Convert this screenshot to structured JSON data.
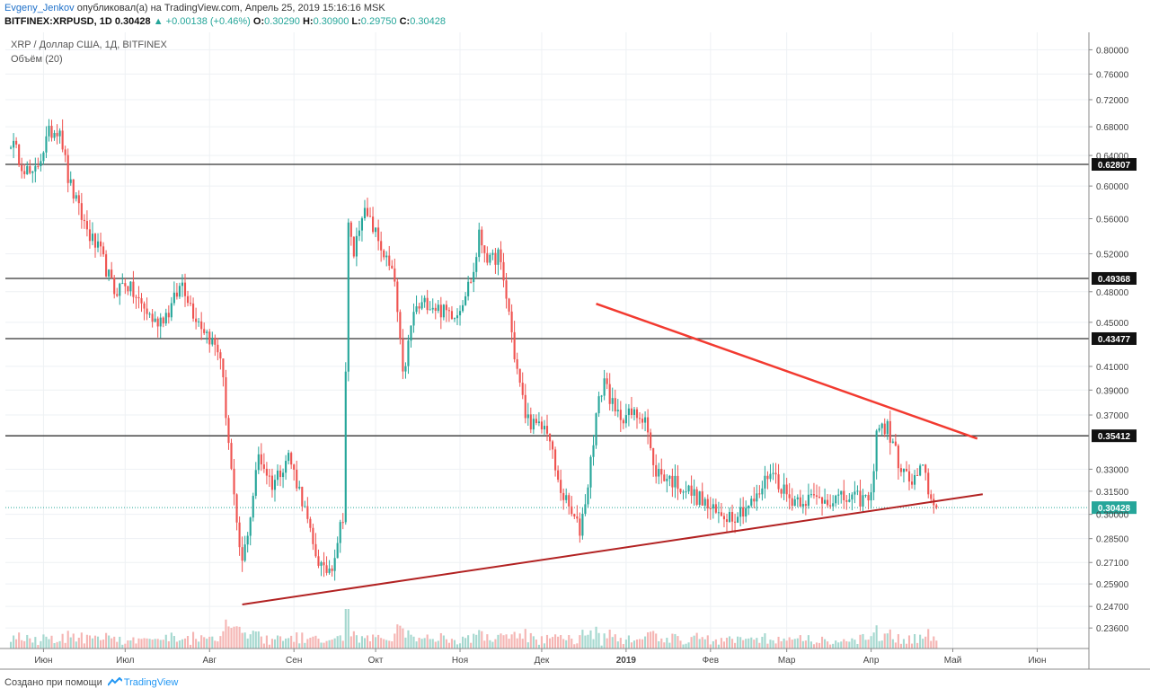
{
  "header": {
    "author": "Evgeny_Jenkov",
    "published_text": "опубликовал(а) на TradingView.com, Апрель 25, 2019 15:16:16 MSK",
    "symbol": "BITFINEX:XRPUSD, 1D",
    "last": "0.30428",
    "change": "+0.00138 (+0.46%)",
    "o_label": "O:",
    "o_value": "0.30290",
    "h_label": "H:",
    "h_value": "0.30900",
    "l_label": "L:",
    "l_value": "0.29750",
    "c_label": "C:",
    "c_value": "0.30428"
  },
  "footer": {
    "text": "Создано при помощи",
    "brand": "TradingView"
  },
  "colors": {
    "up": "#26a69a",
    "down": "#ef5350",
    "up_volume": "#a5d8cf",
    "down_volume": "#f5b5b3",
    "trendline_upper": "#f23a30",
    "trendline_lower": "#b22222",
    "level_line": "#333333",
    "last_price": "#26a69a",
    "grid": "#eef1f4"
  },
  "chart_data": {
    "type": "candlestick",
    "title": "XRP / Доллар США, 1Д, BITFINEX",
    "volume_label": "Объём (20)",
    "y_scale": "log",
    "ylim": [
      0.226,
      0.83
    ],
    "y_ticks": [
      "0.80000",
      "0.76000",
      "0.72000",
      "0.68000",
      "0.64000",
      "0.60000",
      "0.56000",
      "0.52000",
      "0.48000",
      "0.45000",
      "0.41000",
      "0.39000",
      "0.37000",
      "0.33000",
      "0.31500",
      "0.30000",
      "0.28500",
      "0.27100",
      "0.25900",
      "0.24700",
      "0.23600"
    ],
    "x_tick_labels": [
      "Июн",
      "Июл",
      "Авг",
      "Сен",
      "Окт",
      "Ноя",
      "Дек",
      "2019",
      "Фев",
      "Мар",
      "Апр",
      "Май",
      "Июн"
    ],
    "x_tick_dates": [
      "2018-06-01",
      "2018-07-01",
      "2018-08-01",
      "2018-09-01",
      "2018-10-01",
      "2018-11-01",
      "2018-12-01",
      "2019-01-01",
      "2019-02-01",
      "2019-03-01",
      "2019-04-01",
      "2019-05-01",
      "2019-06-01"
    ],
    "x_range": [
      "2018-05-18",
      "2019-06-20"
    ],
    "levels": [
      "0.62807",
      "0.49368",
      "0.43477",
      "0.35412"
    ],
    "last_price": "0.30428",
    "trendlines": [
      {
        "name": "upper",
        "from": [
          "2018-12-21",
          0.468
        ],
        "to": [
          "2019-05-10",
          0.352
        ]
      },
      {
        "name": "lower",
        "from": [
          "2018-08-13",
          0.248
        ],
        "to": [
          "2019-05-12",
          0.313
        ]
      }
    ],
    "price_path": [
      [
        "2018-05-20",
        0.66
      ],
      [
        "2018-05-24",
        0.63
      ],
      [
        "2018-05-28",
        0.61
      ],
      [
        "2018-06-03",
        0.67
      ],
      [
        "2018-06-07",
        0.68
      ],
      [
        "2018-06-10",
        0.61
      ],
      [
        "2018-06-14",
        0.57
      ],
      [
        "2018-06-18",
        0.54
      ],
      [
        "2018-06-22",
        0.52
      ],
      [
        "2018-06-27",
        0.48
      ],
      [
        "2018-07-01",
        0.49
      ],
      [
        "2018-07-06",
        0.47
      ],
      [
        "2018-07-12",
        0.45
      ],
      [
        "2018-07-17",
        0.46
      ],
      [
        "2018-07-22",
        0.49
      ],
      [
        "2018-07-26",
        0.46
      ],
      [
        "2018-07-31",
        0.44
      ],
      [
        "2018-08-05",
        0.42
      ],
      [
        "2018-08-08",
        0.35
      ],
      [
        "2018-08-11",
        0.29
      ],
      [
        "2018-08-13",
        0.27
      ],
      [
        "2018-08-16",
        0.3
      ],
      [
        "2018-08-19",
        0.34
      ],
      [
        "2018-08-24",
        0.32
      ],
      [
        "2018-08-30",
        0.34
      ],
      [
        "2018-09-04",
        0.31
      ],
      [
        "2018-09-08",
        0.28
      ],
      [
        "2018-09-12",
        0.265
      ],
      [
        "2018-09-15",
        0.27
      ],
      [
        "2018-09-19",
        0.3
      ],
      [
        "2018-09-21",
        0.55
      ],
      [
        "2018-09-23",
        0.52
      ],
      [
        "2018-09-26",
        0.57
      ],
      [
        "2018-09-30",
        0.55
      ],
      [
        "2018-10-04",
        0.52
      ],
      [
        "2018-10-08",
        0.49
      ],
      [
        "2018-10-11",
        0.4
      ],
      [
        "2018-10-15",
        0.46
      ],
      [
        "2018-10-20",
        0.47
      ],
      [
        "2018-10-26",
        0.46
      ],
      [
        "2018-10-31",
        0.46
      ],
      [
        "2018-11-06",
        0.5
      ],
      [
        "2018-11-08",
        0.54
      ],
      [
        "2018-11-12",
        0.51
      ],
      [
        "2018-11-15",
        0.52
      ],
      [
        "2018-11-19",
        0.46
      ],
      [
        "2018-11-21",
        0.42
      ],
      [
        "2018-11-25",
        0.37
      ],
      [
        "2018-11-29",
        0.36
      ],
      [
        "2018-12-03",
        0.36
      ],
      [
        "2018-12-07",
        0.32
      ],
      [
        "2018-12-12",
        0.3
      ],
      [
        "2018-12-15",
        0.29
      ],
      [
        "2018-12-18",
        0.32
      ],
      [
        "2018-12-21",
        0.37
      ],
      [
        "2018-12-24",
        0.4
      ],
      [
        "2018-12-28",
        0.37
      ],
      [
        "2019-01-03",
        0.37
      ],
      [
        "2019-01-08",
        0.37
      ],
      [
        "2019-01-11",
        0.33
      ],
      [
        "2019-01-20",
        0.32
      ],
      [
        "2019-01-28",
        0.31
      ],
      [
        "2019-02-03",
        0.3
      ],
      [
        "2019-02-10",
        0.3
      ],
      [
        "2019-02-18",
        0.31
      ],
      [
        "2019-02-23",
        0.33
      ],
      [
        "2019-03-02",
        0.31
      ],
      [
        "2019-03-10",
        0.31
      ],
      [
        "2019-03-18",
        0.31
      ],
      [
        "2019-03-26",
        0.31
      ],
      [
        "2019-04-01",
        0.31
      ],
      [
        "2019-04-03",
        0.36
      ],
      [
        "2019-04-07",
        0.36
      ],
      [
        "2019-04-12",
        0.33
      ],
      [
        "2019-04-16",
        0.32
      ],
      [
        "2019-04-20",
        0.33
      ],
      [
        "2019-04-24",
        0.304
      ],
      [
        "2019-04-25",
        0.30428
      ]
    ]
  }
}
